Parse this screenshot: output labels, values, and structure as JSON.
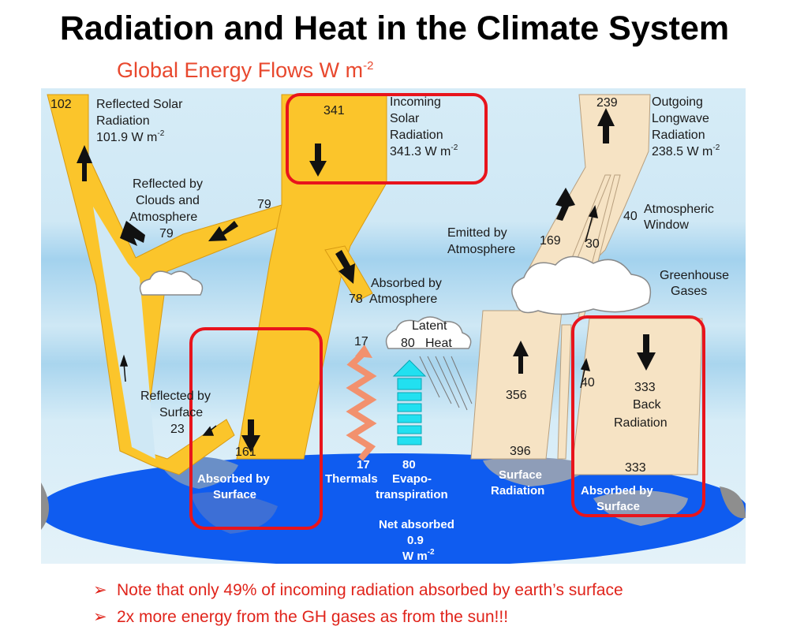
{
  "slide": {
    "title": "Radiation and Heat in the Climate System",
    "diagram_title": "Global Energy Flows W m",
    "diagram_title_exp": "-2"
  },
  "labels": {
    "reflected_solar_value": "102",
    "reflected_solar_1": "Reflected Solar",
    "reflected_solar_2": "Radiation",
    "reflected_solar_3": "101.9 W m",
    "incoming_value": "341",
    "incoming_1": "Incoming",
    "incoming_2": "Solar",
    "incoming_3": "Radiation",
    "incoming_4": "341.3 W m",
    "outgoing_value": "239",
    "outgoing_1": "Outgoing",
    "outgoing_2": "Longwave",
    "outgoing_3": "Radiation",
    "outgoing_4": "238.5 W m",
    "exp_neg2": "-2",
    "reflected_clouds_1": "Reflected by",
    "reflected_clouds_2": "Clouds and",
    "reflected_clouds_3": "Atmosphere",
    "reflected_clouds_value": "79",
    "clouds_arrow_value": "79",
    "atm_window_value": "40",
    "atm_window_1": "Atmospheric",
    "atm_window_2": "Window",
    "emitted_1": "Emitted by",
    "emitted_2": "Atmosphere",
    "emitted_value": "169",
    "emitted_clouds_value": "30",
    "absorbed_atm_1": "Absorbed by",
    "absorbed_atm_2": "Atmosphere",
    "absorbed_atm_value": "78",
    "ghg_1": "Greenhouse",
    "ghg_2": "Gases",
    "latent_1": "Latent",
    "latent_value": "80",
    "latent_2": "Heat",
    "thermals_top_value": "17",
    "reflected_surface_1": "Reflected by",
    "reflected_surface_2": "Surface",
    "reflected_surface_value": "23",
    "surface_up_value": "356",
    "window_low_value": "40",
    "back_value": "333",
    "back_1": "Back",
    "back_2": "Radiation",
    "absorbed_surface_value": "161",
    "surface_rad_value": "396",
    "back_absorbed_value": "333",
    "thermals_value": "17",
    "thermals_label": "Thermals",
    "evapo_value": "80",
    "evapo_1": "Evapo-",
    "evapo_2": "transpiration",
    "absorbed_surface_1": "Absorbed by",
    "absorbed_surface_2": "Surface",
    "surface_radiation_1": "Surface",
    "surface_radiation_2": "Radiation",
    "absorbed_surface_b1": "Absorbed by",
    "absorbed_surface_b2": "Surface",
    "net_1": "Net absorbed",
    "net_value": "0.9",
    "net_unit": "W m"
  },
  "notes": [
    "Note that only 49% of incoming radiation absorbed by earth’s surface",
    "2x more energy from the GH gases as from the sun!!!"
  ],
  "colors": {
    "solar": "#fbc52b",
    "solar_edge": "#d89a12",
    "longwave": "#f6e3c4",
    "longwave_edge": "#b89f7e",
    "sky": "#cbe6f3",
    "band": "#a9d5ee",
    "earth": "#0f5cf0",
    "land": "#8e8e8e",
    "highlight": "#e8141c",
    "title_red": "#e8482e"
  },
  "icons": [
    "down-arrow-icon",
    "up-arrow-icon",
    "cloud-icon",
    "rain-icon",
    "bullet-arrow-icon"
  ]
}
